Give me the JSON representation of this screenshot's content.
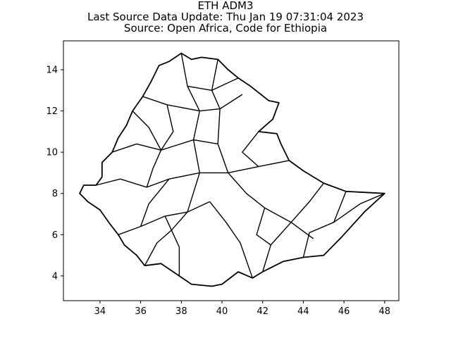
{
  "chart_data": {
    "type": "map",
    "title": "ETH ADM3",
    "subtitle_1": "Last Source Data Update: Thu Jan 19 07:31:04 2023",
    "subtitle_2": "Source: Open Africa, Code for Ethiopia",
    "xlim": [
      32.2,
      48.7
    ],
    "ylim": [
      2.8,
      15.4
    ],
    "x_ticks": [
      34,
      36,
      38,
      40,
      42,
      44,
      46,
      48
    ],
    "y_ticks": [
      4,
      6,
      8,
      10,
      12,
      14
    ],
    "grid": false,
    "outline_lonlat": [
      [
        33.0,
        8.0
      ],
      [
        33.2,
        8.4
      ],
      [
        33.8,
        8.4
      ],
      [
        34.1,
        8.8
      ],
      [
        34.1,
        9.5
      ],
      [
        34.6,
        10.0
      ],
      [
        34.9,
        10.7
      ],
      [
        35.3,
        11.3
      ],
      [
        35.6,
        12.0
      ],
      [
        36.1,
        12.7
      ],
      [
        36.5,
        13.4
      ],
      [
        36.9,
        14.2
      ],
      [
        37.4,
        14.4
      ],
      [
        38.0,
        14.8
      ],
      [
        38.5,
        14.5
      ],
      [
        39.0,
        14.6
      ],
      [
        39.8,
        14.5
      ],
      [
        40.3,
        14.0
      ],
      [
        40.8,
        13.6
      ],
      [
        41.4,
        13.2
      ],
      [
        42.3,
        12.5
      ],
      [
        42.8,
        12.4
      ],
      [
        42.5,
        11.6
      ],
      [
        41.8,
        11.0
      ],
      [
        42.7,
        10.9
      ],
      [
        42.9,
        10.4
      ],
      [
        43.3,
        9.6
      ],
      [
        44.0,
        9.1
      ],
      [
        45.0,
        8.5
      ],
      [
        46.1,
        8.1
      ],
      [
        48.0,
        8.0
      ],
      [
        47.0,
        7.1
      ],
      [
        45.9,
        5.9
      ],
      [
        45.0,
        5.0
      ],
      [
        44.0,
        4.9
      ],
      [
        43.0,
        4.7
      ],
      [
        42.0,
        4.2
      ],
      [
        41.5,
        3.9
      ],
      [
        40.8,
        4.2
      ],
      [
        40.0,
        3.6
      ],
      [
        39.5,
        3.5
      ],
      [
        38.5,
        3.6
      ],
      [
        37.9,
        4.0
      ],
      [
        37.0,
        4.6
      ],
      [
        36.2,
        4.5
      ],
      [
        35.8,
        5.0
      ],
      [
        35.2,
        5.5
      ],
      [
        34.9,
        6.0
      ],
      [
        34.5,
        6.5
      ],
      [
        34.0,
        7.2
      ],
      [
        33.4,
        7.6
      ],
      [
        33.0,
        8.0
      ]
    ],
    "boundaries_lonlat": [
      [
        [
          38.0,
          14.8
        ],
        [
          38.3,
          13.2
        ],
        [
          38.9,
          12.0
        ],
        [
          38.6,
          10.6
        ],
        [
          38.9,
          9.0
        ]
      ],
      [
        [
          36.1,
          12.7
        ],
        [
          37.3,
          12.3
        ],
        [
          38.9,
          12.0
        ],
        [
          39.9,
          12.1
        ],
        [
          41.0,
          12.8
        ]
      ],
      [
        [
          34.6,
          10.0
        ],
        [
          35.8,
          10.4
        ],
        [
          37.0,
          10.1
        ],
        [
          38.6,
          10.6
        ],
        [
          39.8,
          10.4
        ]
      ],
      [
        [
          33.8,
          8.4
        ],
        [
          35.0,
          8.7
        ],
        [
          36.3,
          8.3
        ],
        [
          37.4,
          8.7
        ],
        [
          38.9,
          9.0
        ]
      ],
      [
        [
          34.9,
          6.0
        ],
        [
          36.0,
          6.4
        ],
        [
          37.2,
          6.9
        ],
        [
          38.3,
          7.1
        ],
        [
          39.4,
          7.6
        ]
      ],
      [
        [
          36.2,
          4.5
        ],
        [
          36.8,
          5.6
        ],
        [
          37.5,
          6.2
        ],
        [
          38.3,
          7.1
        ],
        [
          38.9,
          9.0
        ]
      ],
      [
        [
          39.8,
          14.5
        ],
        [
          39.5,
          13.0
        ],
        [
          39.9,
          12.1
        ],
        [
          39.8,
          10.4
        ],
        [
          40.3,
          9.0
        ]
      ],
      [
        [
          38.9,
          9.0
        ],
        [
          40.3,
          9.0
        ],
        [
          41.8,
          9.3
        ],
        [
          43.3,
          9.6
        ]
      ],
      [
        [
          39.4,
          7.6
        ],
        [
          40.2,
          6.6
        ],
        [
          40.9,
          5.6
        ],
        [
          41.5,
          3.9
        ]
      ],
      [
        [
          40.3,
          9.0
        ],
        [
          41.2,
          8.0
        ],
        [
          42.1,
          7.3
        ],
        [
          43.4,
          6.6
        ],
        [
          44.5,
          5.8
        ]
      ],
      [
        [
          42.0,
          4.2
        ],
        [
          42.4,
          5.5
        ],
        [
          43.4,
          6.6
        ],
        [
          44.3,
          7.6
        ],
        [
          45.0,
          8.5
        ]
      ],
      [
        [
          44.0,
          4.9
        ],
        [
          44.3,
          6.1
        ],
        [
          45.5,
          6.6
        ],
        [
          46.1,
          8.1
        ]
      ],
      [
        [
          42.1,
          7.3
        ],
        [
          41.7,
          6.0
        ],
        [
          42.4,
          5.5
        ]
      ],
      [
        [
          45.5,
          6.6
        ],
        [
          46.8,
          7.5
        ],
        [
          48.0,
          8.0
        ]
      ],
      [
        [
          35.6,
          12.0
        ],
        [
          36.4,
          11.2
        ],
        [
          37.0,
          10.1
        ],
        [
          36.6,
          9.2
        ],
        [
          36.3,
          8.3
        ]
      ],
      [
        [
          37.3,
          12.3
        ],
        [
          37.6,
          11.0
        ],
        [
          37.0,
          10.1
        ]
      ],
      [
        [
          36.0,
          6.4
        ],
        [
          36.4,
          7.5
        ],
        [
          37.4,
          8.7
        ]
      ],
      [
        [
          37.2,
          6.9
        ],
        [
          37.9,
          5.4
        ],
        [
          37.9,
          4.0
        ]
      ],
      [
        [
          38.3,
          13.2
        ],
        [
          39.5,
          13.0
        ],
        [
          40.8,
          13.6
        ]
      ],
      [
        [
          41.8,
          11.0
        ],
        [
          41.0,
          10.0
        ],
        [
          41.8,
          9.3
        ]
      ]
    ]
  }
}
